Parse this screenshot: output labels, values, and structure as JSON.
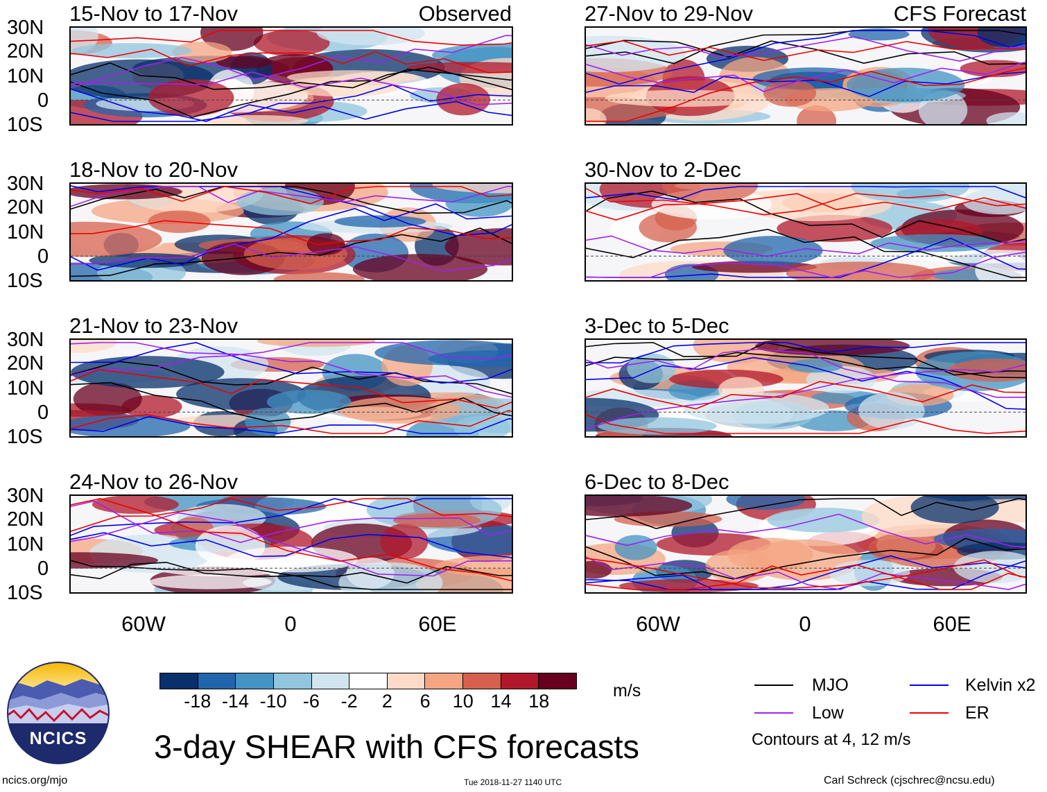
{
  "left_column": {
    "tag": "Observed",
    "panels": [
      {
        "title": "15-Nov to 17-Nov"
      },
      {
        "title": "18-Nov to 20-Nov"
      },
      {
        "title": "21-Nov to 23-Nov"
      },
      {
        "title": "24-Nov to 26-Nov"
      }
    ]
  },
  "right_column": {
    "tag": "CFS Forecast",
    "panels": [
      {
        "title": "27-Nov to 29-Nov"
      },
      {
        "title": "30-Nov to 2-Dec"
      },
      {
        "title": "3-Dec to 5-Dec"
      },
      {
        "title": "6-Dec to 8-Dec"
      }
    ]
  },
  "lat_labels": [
    "30N",
    "20N",
    "10N",
    "0",
    "10S"
  ],
  "lon_labels": [
    "60W",
    "0",
    "60E"
  ],
  "colorbar": {
    "colors": [
      "#08306b",
      "#2166ac",
      "#4393c3",
      "#92c5de",
      "#d1e5f0",
      "#ffffff",
      "#fddbc7",
      "#f4a582",
      "#d6604d",
      "#b2182b",
      "#67001f"
    ],
    "ticks": [
      "-18",
      "-14",
      "-10",
      "-6",
      "-2",
      "2",
      "6",
      "10",
      "14",
      "18"
    ],
    "unit": "m/s"
  },
  "legend": {
    "items": [
      {
        "label": "MJO",
        "color": "#000000"
      },
      {
        "label": "Kelvin x2",
        "color": "#0000ee"
      },
      {
        "label": "Low",
        "color": "#a020f0"
      },
      {
        "label": "ER",
        "color": "#ee0000"
      }
    ],
    "note": "Contours at 4, 12 m/s"
  },
  "main_title": "3-day SHEAR with CFS forecasts",
  "logo": {
    "text": "NCICS"
  },
  "footer": {
    "url": "ncics.org/mjo",
    "timestamp": "Tue 2018-11-27 1140 UTC",
    "credit": "Carl Schreck (cjschrec@ncsu.edu)"
  }
}
